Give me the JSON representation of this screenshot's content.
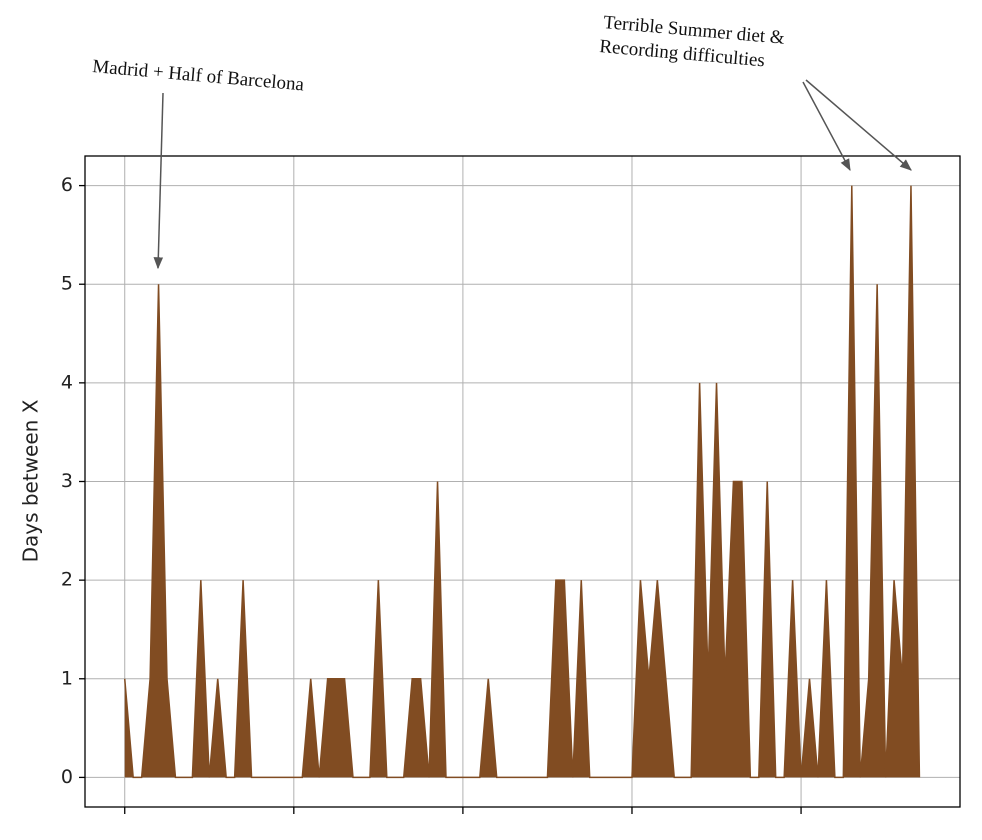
{
  "chart_data": {
    "type": "area",
    "y_label": "Days between X",
    "annotations": [
      "Madrid + Half of Barcelona",
      "Terrible Summer diet &",
      "Recording difficulties"
    ],
    "x": [
      0,
      1,
      2,
      3,
      4,
      5,
      6,
      7,
      8,
      9,
      10,
      11,
      12,
      13,
      14,
      15,
      16,
      17,
      18,
      19,
      20,
      21,
      22,
      23,
      24,
      25,
      26,
      27,
      28,
      29,
      30,
      31,
      32,
      33,
      34,
      35,
      36,
      37,
      38,
      39,
      40,
      41,
      42,
      43,
      44,
      45,
      46,
      47,
      48,
      49,
      50,
      51,
      52,
      53,
      54,
      55,
      56,
      57,
      58,
      59,
      60,
      61,
      62,
      63,
      64,
      65,
      66,
      67,
      68,
      69,
      70,
      71,
      72,
      73,
      74,
      75,
      76,
      77,
      78,
      79,
      80,
      81,
      82,
      83,
      84,
      85,
      86,
      87,
      88,
      89,
      90,
      91,
      92,
      93,
      94
    ],
    "values": [
      1,
      0,
      0,
      1,
      5,
      1,
      0,
      0,
      0,
      2,
      0,
      1,
      0,
      0,
      2,
      0,
      0,
      0,
      0,
      0,
      0,
      0,
      1,
      0,
      1,
      1,
      1,
      0,
      0,
      0,
      2,
      0,
      0,
      0,
      1,
      1,
      0,
      3,
      0,
      0,
      0,
      0,
      0,
      1,
      0,
      0,
      0,
      0,
      0,
      0,
      0,
      2,
      2,
      0,
      2,
      0,
      0,
      0,
      0,
      0,
      0,
      2,
      1,
      2,
      1,
      0,
      0,
      0,
      4,
      1,
      4,
      1,
      3,
      3,
      0,
      0,
      3,
      0,
      0,
      2,
      0,
      1,
      0,
      2,
      0,
      0,
      6,
      0,
      1,
      5,
      0,
      2,
      1,
      6,
      0
    ],
    "color": "#814c22",
    "xlim": [
      -4.7,
      98.8
    ],
    "xticks": [
      0,
      20,
      40,
      60,
      80
    ],
    "ylim": [
      -0.3,
      6.3
    ],
    "yticks": [
      0,
      1,
      2,
      3,
      4,
      5,
      6
    ],
    "grid": true
  }
}
